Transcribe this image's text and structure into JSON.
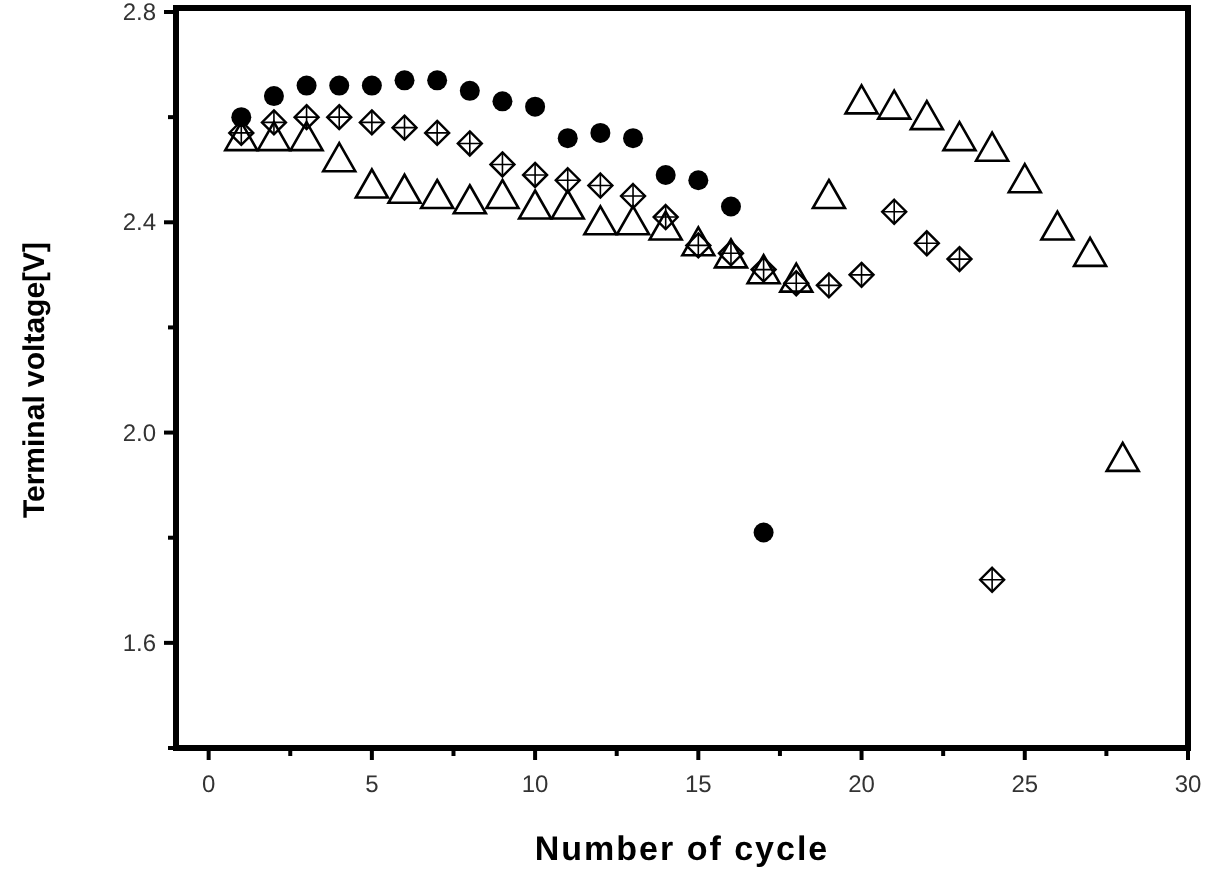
{
  "chart_data": {
    "type": "scatter",
    "xlabel": "Number of cycle",
    "ylabel": "Terminal voltage[V]",
    "series": [
      {
        "color": "#000000",
        "marker": "circle",
        "x": [
          1,
          2,
          3,
          4,
          5,
          6,
          7,
          8,
          9,
          10,
          11,
          12,
          13,
          14,
          15,
          16,
          17
        ],
        "values": [
          2.6,
          2.64,
          2.66,
          2.66,
          2.66,
          2.67,
          2.67,
          2.65,
          2.63,
          2.62,
          2.56,
          2.57,
          2.56,
          2.49,
          2.48,
          2.43,
          1.81
        ]
      },
      {
        "color": "#000000",
        "marker": "diamond",
        "x": [
          1,
          2,
          3,
          4,
          5,
          6,
          7,
          8,
          9,
          10,
          11,
          12,
          13,
          14,
          15,
          16,
          17,
          18,
          19,
          20,
          21,
          22,
          23,
          24
        ],
        "values": [
          2.57,
          2.59,
          2.6,
          2.6,
          2.59,
          2.58,
          2.57,
          2.55,
          2.51,
          2.49,
          2.48,
          2.47,
          2.45,
          2.41,
          2.356,
          2.341,
          2.31,
          2.284,
          2.28,
          2.3,
          2.42,
          2.36,
          2.33,
          1.72
        ]
      },
      {
        "color": "#000000",
        "marker": "triangle",
        "x": [
          1,
          2,
          3,
          4,
          5,
          6,
          7,
          8,
          9,
          10,
          11,
          12,
          13,
          14,
          15,
          16,
          17,
          18,
          19,
          20,
          21,
          22,
          23,
          24,
          25,
          26,
          27,
          28
        ],
        "values": [
          2.56,
          2.56,
          2.56,
          2.52,
          2.47,
          2.46,
          2.45,
          2.44,
          2.45,
          2.43,
          2.43,
          2.4,
          2.4,
          2.39,
          2.36,
          2.337,
          2.307,
          2.291,
          2.45,
          2.63,
          2.62,
          2.6,
          2.56,
          2.54,
          2.48,
          2.39,
          2.34,
          1.95
        ]
      }
    ],
    "xlim": [
      -1,
      30
    ],
    "xticks": [
      0,
      {
        "value": 2.5,
        "label": null
      },
      5,
      {
        "value": 7.5,
        "label": null
      },
      10,
      {
        "value": 12.5,
        "label": null
      },
      15,
      {
        "value": 17.5,
        "label": null
      },
      20,
      {
        "value": 22.5,
        "label": null
      },
      25,
      {
        "value": 27.5,
        "label": null
      },
      30
    ],
    "ylim": [
      1.4,
      2.8
    ],
    "yticks": [
      {
        "value": 1.4,
        "label": null
      },
      1.6,
      {
        "value": 1.8,
        "label": null
      },
      {
        "value": 2,
        "label": "2.0"
      },
      {
        "value": 2.2,
        "label": null
      },
      2.4,
      {
        "value": 2.6,
        "label": null
      },
      2.8
    ],
    "grid": false
  }
}
